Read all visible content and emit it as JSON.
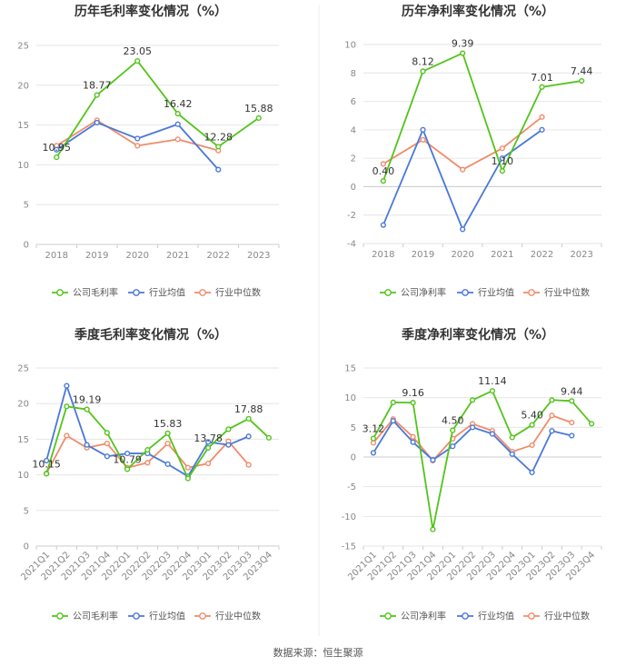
{
  "source_text": "数据来源：恒生聚源",
  "colors": {
    "company": "#52c41a",
    "avg": "#4a78d8",
    "median": "#f08c6a",
    "grid": "#e6e6e6",
    "axis": "#cccccc"
  },
  "chart_data": [
    {
      "type": "line",
      "title": "历年毛利率变化情况（%）",
      "categories": [
        "2018",
        "2019",
        "2020",
        "2021",
        "2022",
        "2023"
      ],
      "ylim": [
        0,
        25
      ],
      "yticks": [
        0,
        5,
        10,
        15,
        20,
        25
      ],
      "rotate_x": false,
      "series": [
        {
          "name": "公司毛利率",
          "key": "company",
          "values": [
            10.95,
            18.77,
            23.05,
            16.42,
            12.28,
            15.88
          ]
        },
        {
          "name": "行业均值",
          "key": "avg",
          "values": [
            11.9,
            15.3,
            13.3,
            15.1,
            9.4,
            null
          ]
        },
        {
          "name": "行业中位数",
          "key": "median",
          "values": [
            12.4,
            15.6,
            12.4,
            13.2,
            11.8,
            null
          ]
        }
      ],
      "labels": [
        {
          "index": 0,
          "text": "10.95"
        },
        {
          "index": 1,
          "text": "18.77"
        },
        {
          "index": 2,
          "text": "23.05"
        },
        {
          "index": 3,
          "text": "16.42"
        },
        {
          "index": 4,
          "text": "12.28"
        },
        {
          "index": 5,
          "text": "15.88"
        }
      ]
    },
    {
      "type": "line",
      "title": "历年净利率变化情况（%）",
      "categories": [
        "2018",
        "2019",
        "2020",
        "2021",
        "2022",
        "2023"
      ],
      "ylim": [
        -4,
        10
      ],
      "yticks": [
        -4,
        -2,
        0,
        2,
        4,
        6,
        8,
        10
      ],
      "rotate_x": false,
      "series": [
        {
          "name": "公司净利率",
          "key": "company",
          "values": [
            0.4,
            8.12,
            9.39,
            1.1,
            7.01,
            7.44
          ]
        },
        {
          "name": "行业均值",
          "key": "avg",
          "values": [
            -2.7,
            4.0,
            -3.0,
            2.0,
            4.0,
            null
          ]
        },
        {
          "name": "行业中位数",
          "key": "median",
          "values": [
            1.6,
            3.3,
            1.2,
            2.7,
            4.9,
            null
          ]
        }
      ],
      "labels": [
        {
          "index": 0,
          "text": "0.40"
        },
        {
          "index": 1,
          "text": "8.12"
        },
        {
          "index": 2,
          "text": "9.39"
        },
        {
          "index": 3,
          "text": "1.10"
        },
        {
          "index": 4,
          "text": "7.01"
        },
        {
          "index": 5,
          "text": "7.44"
        }
      ]
    },
    {
      "type": "line",
      "title": "季度毛利率变化情况（%）",
      "categories": [
        "2021Q1",
        "2021Q2",
        "2021Q3",
        "2021Q4",
        "2022Q1",
        "2022Q2",
        "2022Q3",
        "2022Q4",
        "2023Q1",
        "2023Q2",
        "2023Q3",
        "2023Q4"
      ],
      "ylim": [
        0,
        25
      ],
      "yticks": [
        0,
        5,
        10,
        15,
        20,
        25
      ],
      "rotate_x": true,
      "series": [
        {
          "name": "公司毛利率",
          "key": "company",
          "values": [
            10.15,
            19.6,
            19.19,
            15.9,
            10.79,
            13.5,
            15.83,
            9.5,
            13.78,
            16.4,
            17.88,
            15.2
          ]
        },
        {
          "name": "行业均值",
          "key": "avg",
          "values": [
            12.0,
            22.5,
            14.2,
            12.6,
            13.0,
            13.0,
            11.5,
            9.8,
            14.6,
            14.2,
            15.4,
            null
          ]
        },
        {
          "name": "行业中位数",
          "key": "median",
          "values": [
            10.2,
            15.5,
            13.8,
            14.4,
            11.0,
            11.7,
            14.4,
            11.0,
            11.6,
            14.7,
            11.4,
            null
          ]
        }
      ],
      "labels": [
        {
          "index": 0,
          "text": "10.15"
        },
        {
          "index": 2,
          "text": "19.19"
        },
        {
          "index": 4,
          "text": "10.79"
        },
        {
          "index": 6,
          "text": "15.83"
        },
        {
          "index": 8,
          "text": "13.78"
        },
        {
          "index": 10,
          "text": "17.88"
        }
      ]
    },
    {
      "type": "line",
      "title": "季度净利率变化情况（%）",
      "categories": [
        "2021Q1",
        "2021Q2",
        "2021Q3",
        "2021Q4",
        "2022Q1",
        "2022Q2",
        "2022Q3",
        "2022Q4",
        "2023Q1",
        "2023Q2",
        "2023Q3",
        "2023Q4"
      ],
      "ylim": [
        -15,
        15
      ],
      "yticks": [
        -15,
        -10,
        -5,
        0,
        5,
        10,
        15
      ],
      "rotate_x": true,
      "series": [
        {
          "name": "公司净利率",
          "key": "company",
          "values": [
            3.12,
            9.2,
            9.16,
            -12.2,
            4.5,
            9.6,
            11.14,
            3.3,
            5.4,
            9.6,
            9.44,
            5.6
          ]
        },
        {
          "name": "行业均值",
          "key": "avg",
          "values": [
            0.7,
            6.1,
            2.5,
            -0.5,
            1.8,
            5.0,
            3.9,
            0.5,
            -2.6,
            4.4,
            3.6,
            null
          ]
        },
        {
          "name": "行业中位数",
          "key": "median",
          "values": [
            2.4,
            6.4,
            3.4,
            -0.6,
            3.1,
            5.6,
            4.4,
            0.9,
            2.0,
            7.0,
            5.8,
            null
          ]
        }
      ],
      "labels": [
        {
          "index": 0,
          "text": "3.12"
        },
        {
          "index": 2,
          "text": "9.16"
        },
        {
          "index": 4,
          "text": "4.50"
        },
        {
          "index": 6,
          "text": "11.14"
        },
        {
          "index": 8,
          "text": "5.40"
        },
        {
          "index": 10,
          "text": "9.44"
        }
      ]
    }
  ]
}
